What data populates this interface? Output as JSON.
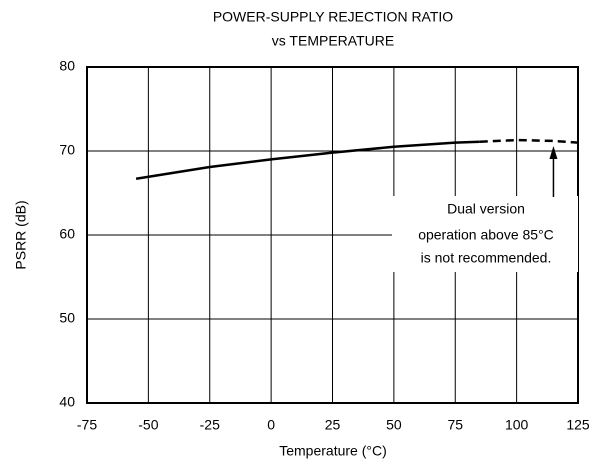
{
  "chart_data": {
    "type": "line",
    "title": [
      "POWER-SUPPLY REJECTION RATIO",
      "vs TEMPERATURE"
    ],
    "x_label": "Temperature (°C)",
    "y_label": "PSRR (dB)",
    "x": [
      -55,
      -25,
      0,
      25,
      50,
      75,
      85,
      100,
      115,
      125
    ],
    "series": [
      {
        "color": "#000000",
        "style": "solid",
        "values": [
          66.7,
          68.1,
          69.0,
          69.8,
          70.5,
          71.0,
          71.1,
          null,
          null,
          null
        ]
      },
      {
        "color": "#000000",
        "style": "dashed",
        "values": [
          null,
          null,
          null,
          null,
          null,
          null,
          71.1,
          71.3,
          71.2,
          71.0
        ]
      }
    ],
    "xlim": [
      -75,
      125
    ],
    "xticks": [
      -75,
      -50,
      -25,
      0,
      25,
      50,
      75,
      100,
      125
    ],
    "ylim": [
      40,
      80
    ],
    "yticks": [
      40,
      50,
      60,
      70,
      80
    ],
    "grid": true,
    "annotation": {
      "text": [
        "Dual version",
        "operation above 85°C",
        "is not recommended."
      ],
      "x": 115,
      "y": 70.6
    }
  }
}
